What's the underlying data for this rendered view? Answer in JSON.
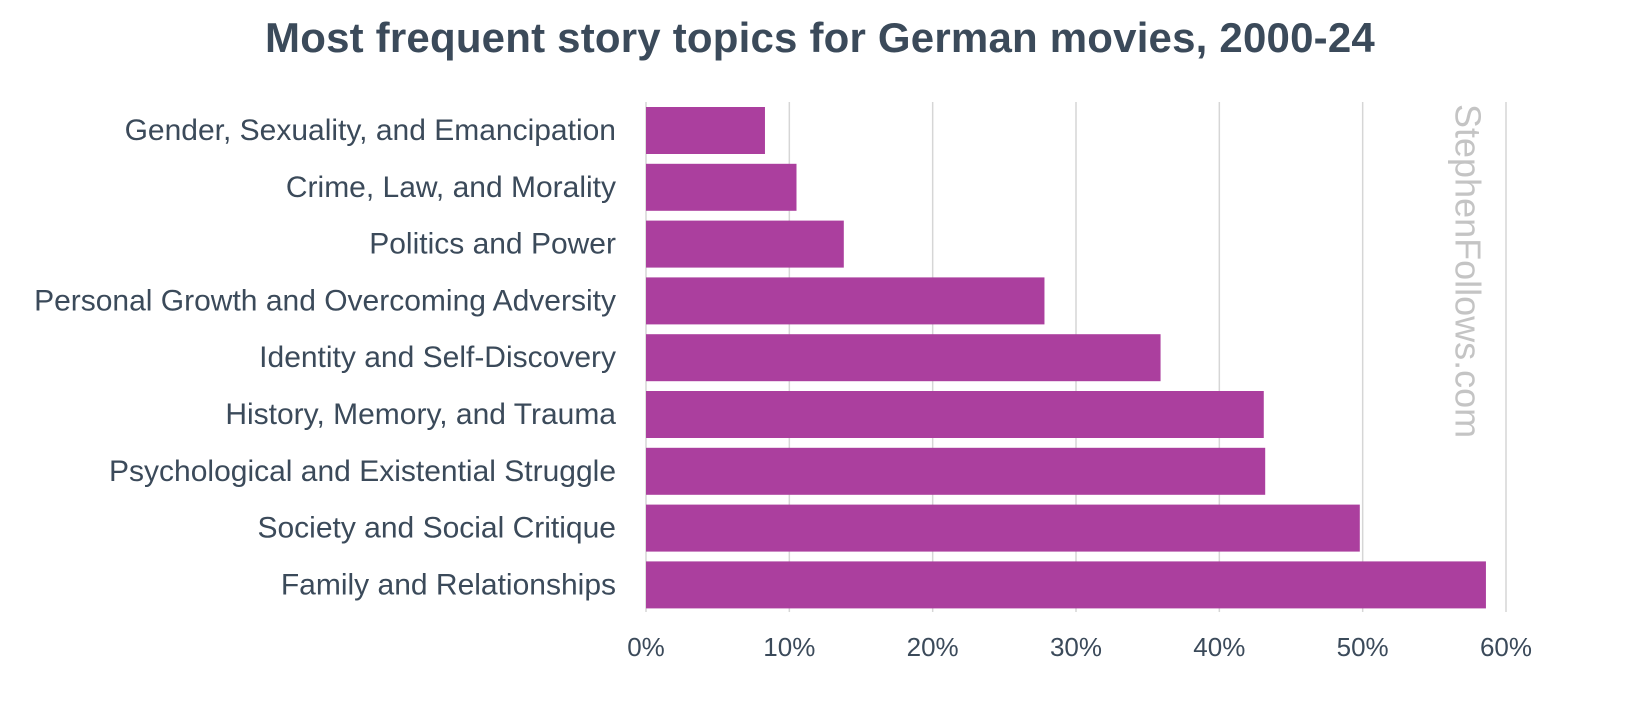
{
  "chart_data": {
    "type": "bar",
    "orientation": "horizontal",
    "title": "Most frequent story topics for German movies, 2000-24",
    "xlabel": "",
    "ylabel": "",
    "categories": [
      "Gender, Sexuality, and Emancipation",
      "Crime, Law, and Morality",
      "Politics and Power",
      "Personal Growth and Overcoming Adversity",
      "Identity and Self-Discovery",
      "History, Memory, and Trauma",
      "Psychological and Existential Struggle",
      "Society and Social Critique",
      "Family and Relationships"
    ],
    "values": [
      8.3,
      10.5,
      13.8,
      27.8,
      35.9,
      43.1,
      43.2,
      49.8,
      58.6
    ],
    "xlim": [
      0,
      60
    ],
    "ticks": [
      0,
      10,
      20,
      30,
      40,
      50,
      60
    ],
    "tick_labels": [
      "0%",
      "10%",
      "20%",
      "30%",
      "40%",
      "50%",
      "60%"
    ],
    "grid": true,
    "bar_color": "#ab3f9e",
    "grid_color": "#d6d6d6",
    "text_color": "#3b4a5a",
    "watermark": "StephenFollows.com"
  }
}
